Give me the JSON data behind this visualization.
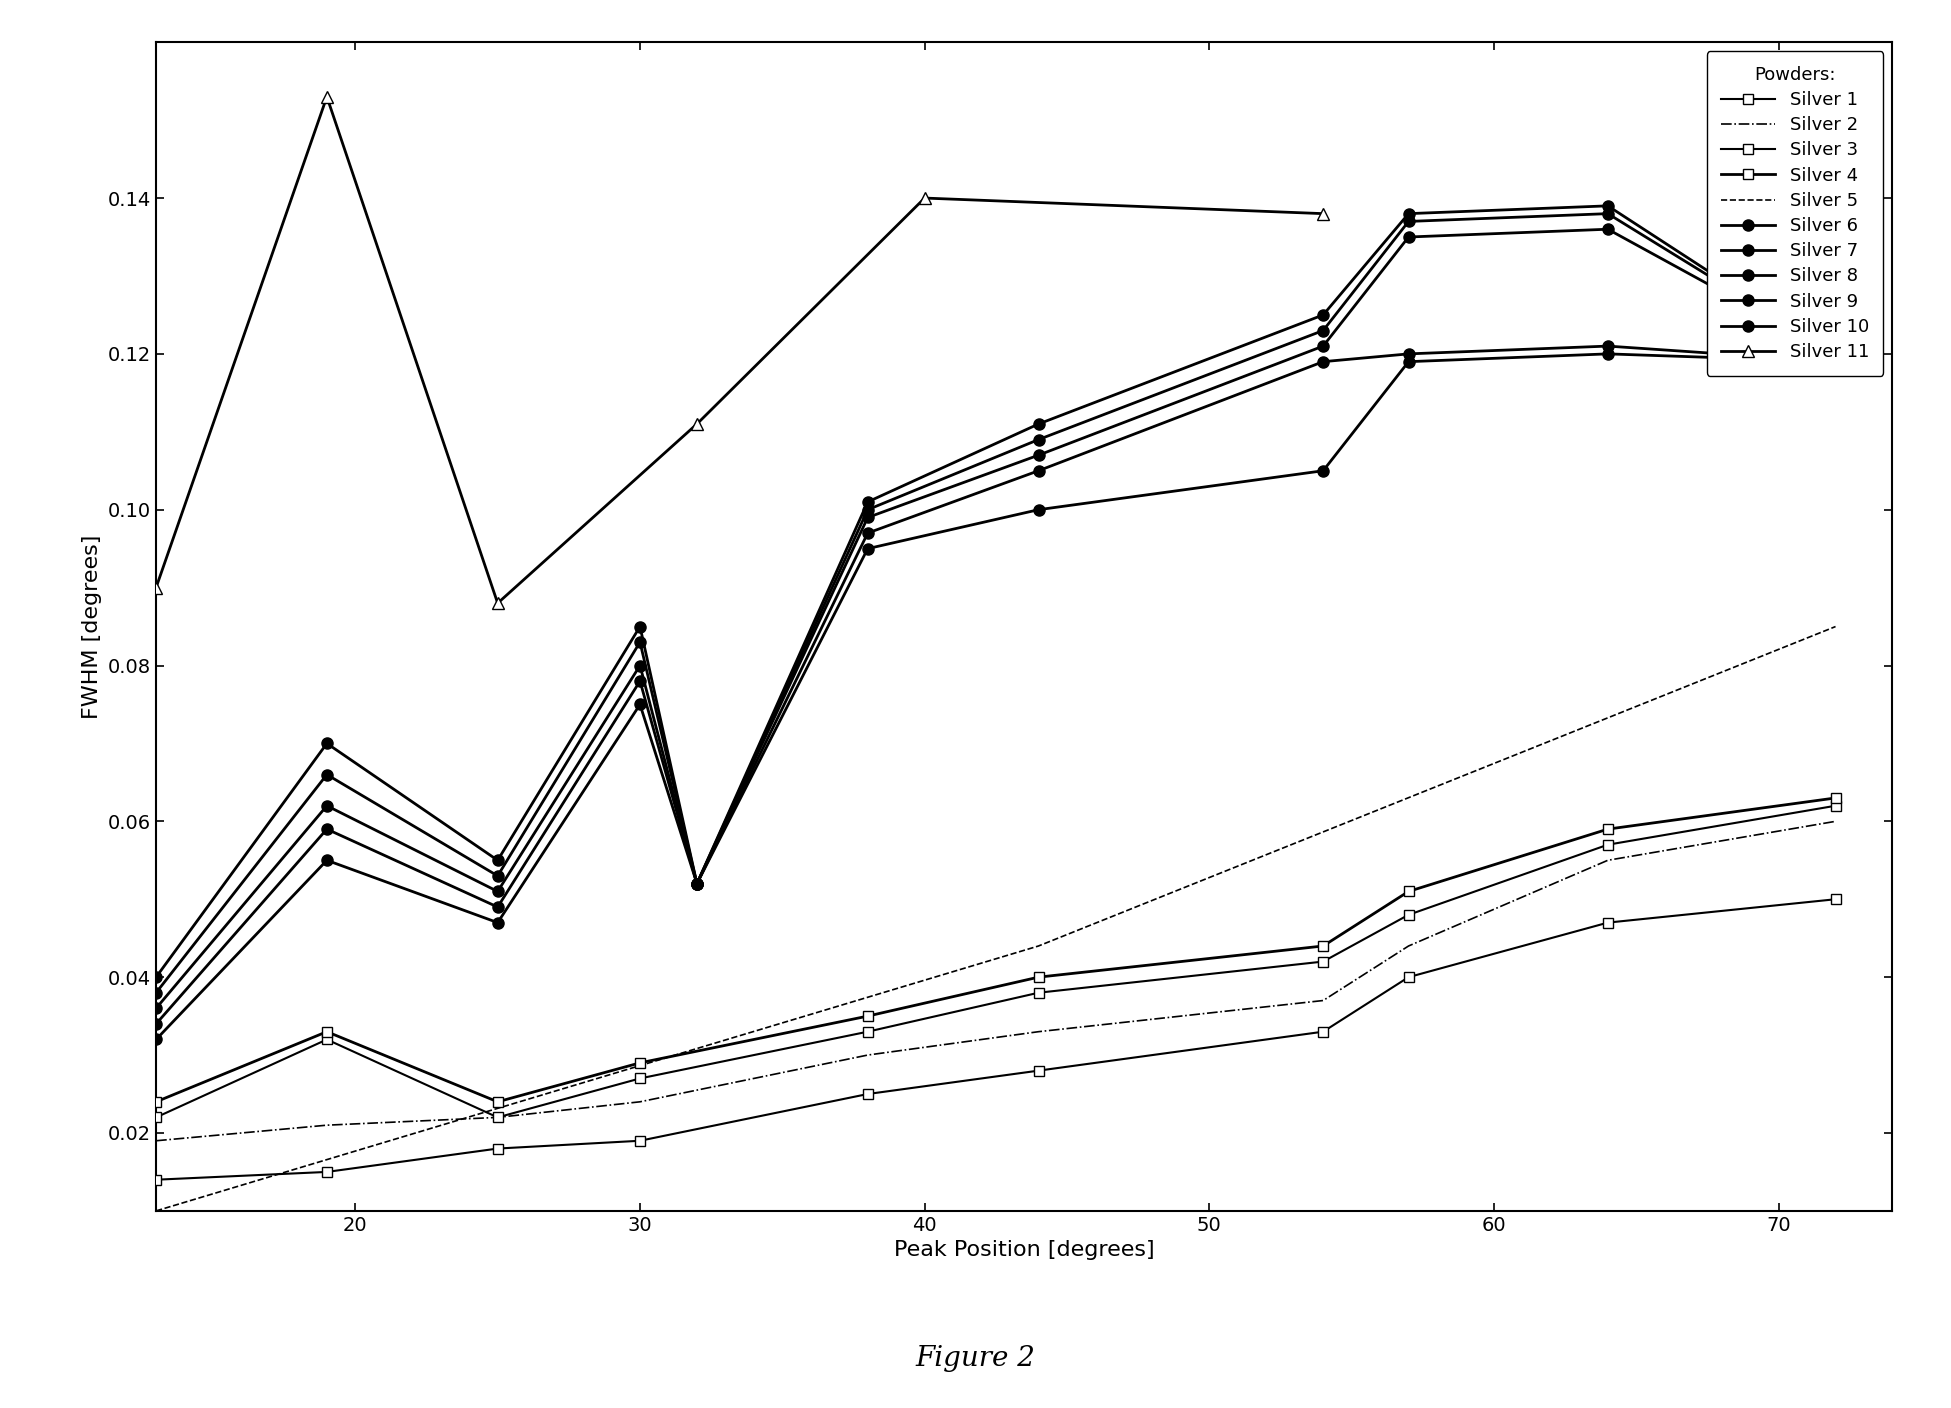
{
  "title": "Figure 2",
  "xlabel": "Peak Position [degrees]",
  "ylabel": "FWHM [degrees]",
  "xlim": [
    13,
    74
  ],
  "ylim": [
    0.01,
    0.16
  ],
  "series": [
    {
      "name": "Silver 1",
      "x": [
        13,
        19,
        25,
        30,
        38,
        44,
        54,
        57,
        64,
        72
      ],
      "y": [
        0.014,
        0.015,
        0.018,
        0.019,
        0.025,
        0.028,
        0.033,
        0.04,
        0.047,
        0.05
      ],
      "color": "black",
      "linestyle": "-",
      "marker": "s",
      "markersize": 7,
      "linewidth": 1.5,
      "markerfacecolor": "white",
      "zorder": 3
    },
    {
      "name": "Silver 2",
      "x": [
        13,
        19,
        25,
        30,
        38,
        44,
        54,
        57,
        64,
        72
      ],
      "y": [
        0.019,
        0.021,
        0.022,
        0.024,
        0.03,
        0.033,
        0.037,
        0.044,
        0.055,
        0.06
      ],
      "color": "black",
      "linestyle": "-.",
      "marker": "none",
      "markersize": 0,
      "linewidth": 1.2,
      "markerfacecolor": "white",
      "zorder": 3
    },
    {
      "name": "Silver 3",
      "x": [
        13,
        19,
        25,
        30,
        38,
        44,
        54,
        57,
        64,
        72
      ],
      "y": [
        0.022,
        0.032,
        0.022,
        0.027,
        0.033,
        0.038,
        0.042,
        0.048,
        0.057,
        0.062
      ],
      "color": "black",
      "linestyle": "-",
      "marker": "s",
      "markersize": 7,
      "linewidth": 1.5,
      "markerfacecolor": "white",
      "zorder": 3
    },
    {
      "name": "Silver 4",
      "x": [
        13,
        19,
        25,
        30,
        38,
        44,
        54,
        57,
        64,
        72
      ],
      "y": [
        0.024,
        0.033,
        0.024,
        0.029,
        0.035,
        0.04,
        0.044,
        0.051,
        0.059,
        0.063
      ],
      "color": "black",
      "linestyle": "-",
      "marker": "s",
      "markersize": 7,
      "linewidth": 2.0,
      "markerfacecolor": "white",
      "zorder": 3
    },
    {
      "name": "Silver 5",
      "x": [
        13,
        44,
        72
      ],
      "y": [
        0.01,
        0.044,
        0.085
      ],
      "color": "black",
      "linestyle": "--",
      "marker": "none",
      "markersize": 0,
      "linewidth": 1.2,
      "markerfacecolor": "white",
      "zorder": 2
    },
    {
      "name": "Silver 6",
      "x": [
        13,
        19,
        25,
        30,
        32,
        38,
        44,
        54,
        57,
        64,
        72
      ],
      "y": [
        0.04,
        0.07,
        0.055,
        0.085,
        0.052,
        0.101,
        0.111,
        0.125,
        0.138,
        0.139,
        0.12
      ],
      "color": "black",
      "linestyle": "-",
      "marker": "o",
      "markersize": 8,
      "linewidth": 2.0,
      "markerfacecolor": "black",
      "zorder": 5
    },
    {
      "name": "Silver 7",
      "x": [
        13,
        19,
        25,
        30,
        32,
        38,
        44,
        54,
        57,
        64,
        72
      ],
      "y": [
        0.038,
        0.066,
        0.053,
        0.083,
        0.052,
        0.1,
        0.109,
        0.123,
        0.137,
        0.138,
        0.12
      ],
      "color": "black",
      "linestyle": "-",
      "marker": "o",
      "markersize": 8,
      "linewidth": 2.0,
      "markerfacecolor": "black",
      "zorder": 5
    },
    {
      "name": "Silver 8",
      "x": [
        13,
        19,
        25,
        30,
        32,
        38,
        44,
        54,
        57,
        64,
        72
      ],
      "y": [
        0.036,
        0.062,
        0.051,
        0.08,
        0.052,
        0.099,
        0.107,
        0.121,
        0.135,
        0.136,
        0.12
      ],
      "color": "black",
      "linestyle": "-",
      "marker": "o",
      "markersize": 8,
      "linewidth": 2.0,
      "markerfacecolor": "black",
      "zorder": 5
    },
    {
      "name": "Silver 9",
      "x": [
        13,
        19,
        25,
        30,
        32,
        38,
        44,
        54,
        57,
        64,
        72
      ],
      "y": [
        0.034,
        0.059,
        0.049,
        0.078,
        0.052,
        0.097,
        0.105,
        0.119,
        0.12,
        0.121,
        0.119
      ],
      "color": "black",
      "linestyle": "-",
      "marker": "o",
      "markersize": 8,
      "linewidth": 2.0,
      "markerfacecolor": "black",
      "zorder": 5
    },
    {
      "name": "Silver 10",
      "x": [
        13,
        19,
        25,
        30,
        32,
        38,
        44,
        54,
        57,
        64,
        72
      ],
      "y": [
        0.032,
        0.055,
        0.047,
        0.075,
        0.052,
        0.095,
        0.1,
        0.105,
        0.119,
        0.12,
        0.119
      ],
      "color": "black",
      "linestyle": "-",
      "marker": "o",
      "markersize": 8,
      "linewidth": 2.0,
      "markerfacecolor": "black",
      "zorder": 5
    },
    {
      "name": "Silver 11",
      "x": [
        13,
        19,
        25,
        32,
        40,
        54
      ],
      "y": [
        0.09,
        0.153,
        0.088,
        0.111,
        0.14,
        0.138
      ],
      "color": "black",
      "linestyle": "-",
      "marker": "^",
      "markersize": 9,
      "linewidth": 2.0,
      "markerfacecolor": "white",
      "zorder": 6
    }
  ],
  "legend_markers": [
    {
      "name": "Silver 1",
      "linestyle": "-",
      "linewidth": 1.5,
      "marker": "s",
      "markersize": 7,
      "mfc": "white"
    },
    {
      "name": "Silver 2",
      "linestyle": "-.",
      "linewidth": 1.2,
      "marker": "none",
      "markersize": 0,
      "mfc": "white"
    },
    {
      "name": "Silver 3",
      "linestyle": "-",
      "linewidth": 1.5,
      "marker": "s",
      "markersize": 7,
      "mfc": "white"
    },
    {
      "name": "Silver 4",
      "linestyle": "-",
      "linewidth": 2.0,
      "marker": "s",
      "markersize": 7,
      "mfc": "white"
    },
    {
      "name": "Silver 5",
      "linestyle": "--",
      "linewidth": 1.2,
      "marker": "none",
      "markersize": 0,
      "mfc": "white"
    },
    {
      "name": "Silver 6",
      "linestyle": "-",
      "linewidth": 2.0,
      "marker": "o",
      "markersize": 8,
      "mfc": "black"
    },
    {
      "name": "Silver 7",
      "linestyle": "-",
      "linewidth": 2.0,
      "marker": "o",
      "markersize": 8,
      "mfc": "black"
    },
    {
      "name": "Silver 8",
      "linestyle": "-",
      "linewidth": 2.0,
      "marker": "o",
      "markersize": 8,
      "mfc": "black"
    },
    {
      "name": "Silver 9",
      "linestyle": "-",
      "linewidth": 2.0,
      "marker": "o",
      "markersize": 8,
      "mfc": "black"
    },
    {
      "name": "Silver 10",
      "linestyle": "-",
      "linewidth": 2.0,
      "marker": "o",
      "markersize": 8,
      "mfc": "black"
    },
    {
      "name": "Silver 11",
      "linestyle": "-",
      "linewidth": 2.0,
      "marker": "^",
      "markersize": 9,
      "mfc": "white"
    }
  ],
  "yticks": [
    0.02,
    0.04,
    0.06,
    0.08,
    0.1,
    0.12,
    0.14
  ],
  "xticks": [
    20,
    30,
    40,
    50,
    60,
    70
  ],
  "legend_title": "Powders:",
  "background_color": "white",
  "figsize": [
    19.51,
    14.08
  ],
  "dpi": 100
}
